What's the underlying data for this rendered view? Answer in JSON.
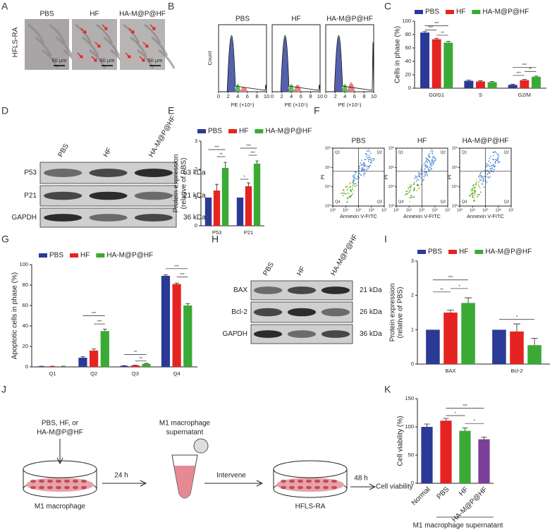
{
  "panel_letters": [
    "A",
    "B",
    "C",
    "D",
    "E",
    "F",
    "G",
    "H",
    "I",
    "J",
    "K"
  ],
  "micrographs": {
    "row_label": "HFLS-RA",
    "groups": [
      "PBS",
      "HF",
      "HA-M@P@HF"
    ],
    "scale_bar": "50 µm"
  },
  "flow_cycle": {
    "titles": [
      "PBS",
      "HF",
      "HA-M@P@HF"
    ],
    "y_label": "Count",
    "x_label": "PE (×10⁵)",
    "xticks": [
      0,
      2,
      4,
      6,
      8,
      10
    ]
  },
  "blot_d": {
    "lanes": [
      "PBS",
      "HF",
      "HA-M@P@HF"
    ],
    "rows": [
      {
        "name": "P53",
        "size": "53 kDa"
      },
      {
        "name": "P21",
        "size": "21 kDa"
      },
      {
        "name": "GAPDH",
        "size": "36 kDa"
      }
    ]
  },
  "flow_apoptosis": {
    "titles": [
      "PBS",
      "HF",
      "HA-M@P@HF"
    ],
    "y_label": "PI",
    "x_label": "Annexin V-FITC",
    "xticks": [
      {
        "value": 3,
        "label": "10³"
      },
      {
        "value": 4,
        "label": "10⁴"
      },
      {
        "value": 5,
        "label": "10⁵"
      },
      {
        "value": 6,
        "label": "10⁶"
      },
      {
        "value": 7,
        "label": "10⁷"
      }
    ],
    "yticks": [
      {
        "value": 3,
        "label": "10³"
      },
      {
        "value": 4,
        "label": "10⁴"
      },
      {
        "value": 5,
        "label": "10⁵"
      },
      {
        "value": 6,
        "label": "10⁶"
      }
    ],
    "quadrants": [
      "Q1",
      "Q2",
      "Q3",
      "Q4"
    ]
  },
  "blot_h": {
    "lanes": [
      "PBS",
      "HF",
      "HA-M@P@HF"
    ],
    "rows": [
      {
        "name": "BAX",
        "size": "21 kDa"
      },
      {
        "name": "Bcl-2",
        "size": "26 kDa"
      },
      {
        "name": "GAPDH",
        "size": "36 kDa"
      }
    ]
  },
  "schematic": {
    "treatment": [
      "PBS, HF, or",
      "HA-M@P@HF"
    ],
    "dish1_label": "M1 macrophage",
    "step1": "24 h",
    "tube_label": [
      "M1 macrophage",
      "supernatant"
    ],
    "step2": "Intervene",
    "dish2_label": "HFLS-RA",
    "step3": "48 h",
    "readout": "Cell viability"
  },
  "chart_data": [
    {
      "type": "bar",
      "y_label": [
        "Cells in phase (%)"
      ],
      "categories": [
        "G0/G1",
        "S",
        "G2/M"
      ],
      "series": [
        {
          "name": "PBS",
          "color": "#2b3a97",
          "values": [
            83,
            11,
            5
          ],
          "errors": [
            1.5,
            1,
            1
          ]
        },
        {
          "name": "HF",
          "color": "#e52421",
          "values": [
            73,
            10,
            12
          ],
          "errors": [
            1.5,
            1,
            1
          ]
        },
        {
          "name": "HA-M@P@HF",
          "color": "#3aaa35",
          "values": [
            68,
            9,
            17
          ],
          "errors": [
            2,
            1,
            1
          ]
        }
      ],
      "ylim": [
        0,
        100
      ],
      "yticks": [
        0,
        20,
        40,
        60,
        80,
        100
      ],
      "significance": [
        "***",
        "***",
        "**",
        "***",
        "**",
        "***"
      ]
    },
    {
      "type": "bar",
      "y_label": [
        "Protein expression",
        "(relative of PBS)"
      ],
      "categories": [
        "P53",
        "P21"
      ],
      "series": [
        {
          "name": "PBS",
          "color": "#2b3a97",
          "values": [
            1,
            1
          ],
          "errors": [
            0,
            0
          ]
        },
        {
          "name": "HF",
          "color": "#e52421",
          "values": [
            1.25,
            1.4
          ],
          "errors": [
            0.22,
            0.12
          ]
        },
        {
          "name": "HA-M@P@HF",
          "color": "#3aaa35",
          "values": [
            2.05,
            2.2
          ],
          "errors": [
            0.2,
            0.1
          ]
        }
      ],
      "ylim": [
        0,
        3
      ],
      "yticks": [
        0,
        1,
        2,
        3
      ],
      "significance": [
        "***",
        "**",
        "***",
        "***",
        "*"
      ]
    },
    {
      "type": "bar",
      "y_label": [
        "Apoptotic cells in phase (%)"
      ],
      "categories": [
        "Q1",
        "Q2",
        "Q3",
        "Q4"
      ],
      "series": [
        {
          "name": "PBS",
          "color": "#2b3a97",
          "values": [
            0.5,
            9,
            1,
            89
          ],
          "errors": [
            0.2,
            1,
            0.3,
            1
          ]
        },
        {
          "name": "HF",
          "color": "#e52421",
          "values": [
            0.5,
            16,
            1.5,
            81
          ],
          "errors": [
            0.2,
            1.5,
            0.3,
            1
          ]
        },
        {
          "name": "HA-M@P@HF",
          "color": "#3aaa35",
          "values": [
            0.5,
            35,
            3,
            60
          ],
          "errors": [
            0.2,
            2,
            0.5,
            2
          ]
        }
      ],
      "ylim": [
        0,
        100
      ],
      "yticks": [
        0,
        20,
        40,
        60,
        80,
        100
      ],
      "significance": [
        "***",
        "***",
        "**",
        "**",
        "***",
        "***"
      ]
    },
    {
      "type": "bar",
      "y_label": [
        "Protein expression",
        "(relative of PBS)"
      ],
      "categories": [
        "BAX",
        "Bcl-2"
      ],
      "series": [
        {
          "name": "PBS",
          "color": "#2b3a97",
          "values": [
            1,
            1
          ],
          "errors": [
            0,
            0
          ]
        },
        {
          "name": "HF",
          "color": "#e52421",
          "values": [
            1.5,
            0.95
          ],
          "errors": [
            0.07,
            0.22
          ]
        },
        {
          "name": "HA-M@P@HF",
          "color": "#3aaa35",
          "values": [
            1.78,
            0.55
          ],
          "errors": [
            0.15,
            0.2
          ]
        }
      ],
      "ylim": [
        0,
        3
      ],
      "yticks": [
        0,
        1,
        2,
        3
      ],
      "significance": [
        "**",
        "***",
        "*",
        "*"
      ]
    },
    {
      "type": "bar",
      "y_label": [
        "Cell viability (%)"
      ],
      "categories": [
        "Normal",
        "PBS",
        "HF",
        "HA-M@P@HF"
      ],
      "values": [
        100,
        111,
        93,
        78
      ],
      "errors": [
        5,
        4,
        5,
        4
      ],
      "colors": [
        "#2b3a97",
        "#e52421",
        "#3aaa35",
        "#7b3f98"
      ],
      "ylim": [
        0,
        150
      ],
      "yticks": [
        0,
        50,
        100,
        150
      ],
      "significance": [
        "*",
        "***",
        "*"
      ],
      "footer": "M1 macrophage supernatant"
    }
  ]
}
